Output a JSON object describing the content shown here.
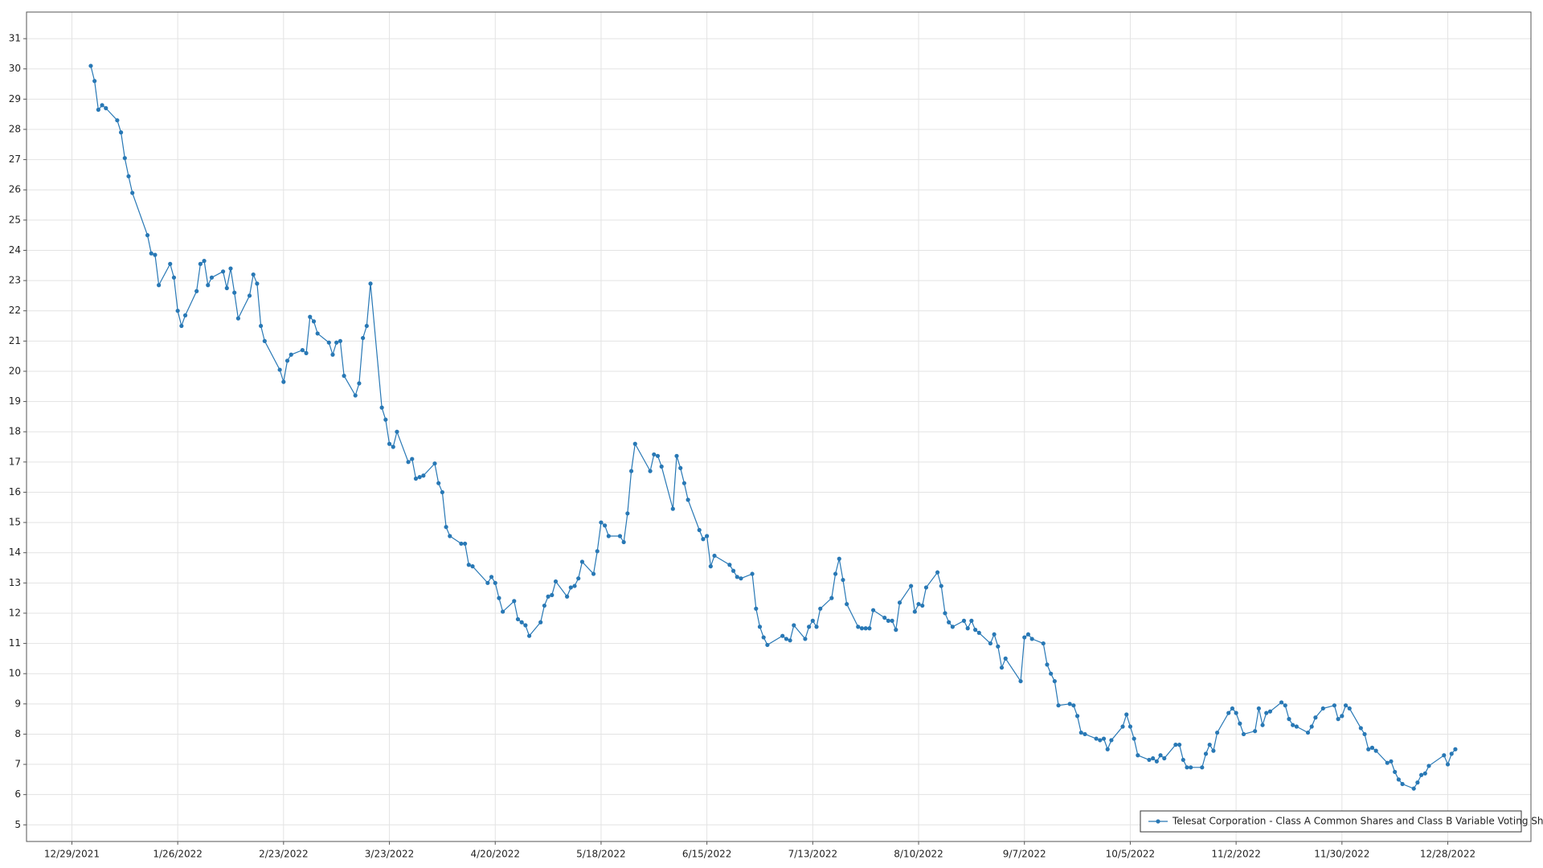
{
  "chart_data": {
    "type": "line",
    "xlim": [
      "2021-12-17",
      "2023-01-19"
    ],
    "ylim": [
      4.45,
      31.88
    ],
    "yticks": [
      5,
      6,
      7,
      8,
      9,
      10,
      11,
      12,
      13,
      14,
      15,
      16,
      17,
      18,
      19,
      20,
      21,
      22,
      23,
      24,
      25,
      26,
      27,
      28,
      29,
      30,
      31
    ],
    "xticks": [
      {
        "value": "2021-12-29",
        "label": "12/29/2021"
      },
      {
        "value": "2022-01-26",
        "label": "1/26/2022"
      },
      {
        "value": "2022-02-23",
        "label": "2/23/2022"
      },
      {
        "value": "2022-03-23",
        "label": "3/23/2022"
      },
      {
        "value": "2022-04-20",
        "label": "4/20/2022"
      },
      {
        "value": "2022-05-18",
        "label": "5/18/2022"
      },
      {
        "value": "2022-06-15",
        "label": "6/15/2022"
      },
      {
        "value": "2022-07-13",
        "label": "7/13/2022"
      },
      {
        "value": "2022-08-10",
        "label": "8/10/2022"
      },
      {
        "value": "2022-09-07",
        "label": "9/7/2022"
      },
      {
        "value": "2022-10-05",
        "label": "10/5/2022"
      },
      {
        "value": "2022-11-02",
        "label": "11/2/2022"
      },
      {
        "value": "2022-11-30",
        "label": "11/30/2022"
      },
      {
        "value": "2022-12-28",
        "label": "12/28/2022"
      }
    ],
    "grid": true,
    "legend": "lower right",
    "series": [
      {
        "name": "Telesat Corporation - Class A Common Shares and Class B Variable Voting Shares",
        "color": "#2878b5",
        "x": [
          "2022-01-03",
          "2022-01-04",
          "2022-01-05",
          "2022-01-06",
          "2022-01-07",
          "2022-01-10",
          "2022-01-11",
          "2022-01-12",
          "2022-01-13",
          "2022-01-14",
          "2022-01-18",
          "2022-01-19",
          "2022-01-20",
          "2022-01-21",
          "2022-01-24",
          "2022-01-25",
          "2022-01-26",
          "2022-01-27",
          "2022-01-28",
          "2022-01-31",
          "2022-02-01",
          "2022-02-02",
          "2022-02-03",
          "2022-02-04",
          "2022-02-07",
          "2022-02-08",
          "2022-02-09",
          "2022-02-10",
          "2022-02-11",
          "2022-02-14",
          "2022-02-15",
          "2022-02-16",
          "2022-02-17",
          "2022-02-18",
          "2022-02-22",
          "2022-02-23",
          "2022-02-24",
          "2022-02-25",
          "2022-02-28",
          "2022-03-01",
          "2022-03-02",
          "2022-03-03",
          "2022-03-04",
          "2022-03-07",
          "2022-03-08",
          "2022-03-09",
          "2022-03-10",
          "2022-03-11",
          "2022-03-14",
          "2022-03-15",
          "2022-03-16",
          "2022-03-17",
          "2022-03-18",
          "2022-03-21",
          "2022-03-22",
          "2022-03-23",
          "2022-03-24",
          "2022-03-25",
          "2022-03-28",
          "2022-03-29",
          "2022-03-30",
          "2022-03-31",
          "2022-04-01",
          "2022-04-04",
          "2022-04-05",
          "2022-04-06",
          "2022-04-07",
          "2022-04-08",
          "2022-04-11",
          "2022-04-12",
          "2022-04-13",
          "2022-04-14",
          "2022-04-18",
          "2022-04-19",
          "2022-04-20",
          "2022-04-21",
          "2022-04-22",
          "2022-04-25",
          "2022-04-26",
          "2022-04-27",
          "2022-04-28",
          "2022-04-29",
          "2022-05-02",
          "2022-05-03",
          "2022-05-04",
          "2022-05-05",
          "2022-05-06",
          "2022-05-09",
          "2022-05-10",
          "2022-05-11",
          "2022-05-12",
          "2022-05-13",
          "2022-05-16",
          "2022-05-17",
          "2022-05-18",
          "2022-05-19",
          "2022-05-20",
          "2022-05-23",
          "2022-05-24",
          "2022-05-25",
          "2022-05-26",
          "2022-05-27",
          "2022-05-31",
          "2022-06-01",
          "2022-06-02",
          "2022-06-03",
          "2022-06-06",
          "2022-06-07",
          "2022-06-08",
          "2022-06-09",
          "2022-06-10",
          "2022-06-13",
          "2022-06-14",
          "2022-06-15",
          "2022-06-16",
          "2022-06-17",
          "2022-06-21",
          "2022-06-22",
          "2022-06-23",
          "2022-06-24",
          "2022-06-27",
          "2022-06-28",
          "2022-06-29",
          "2022-06-30",
          "2022-07-01",
          "2022-07-05",
          "2022-07-06",
          "2022-07-07",
          "2022-07-08",
          "2022-07-11",
          "2022-07-12",
          "2022-07-13",
          "2022-07-14",
          "2022-07-15",
          "2022-07-18",
          "2022-07-19",
          "2022-07-20",
          "2022-07-21",
          "2022-07-22",
          "2022-07-25",
          "2022-07-26",
          "2022-07-27",
          "2022-07-28",
          "2022-07-29",
          "2022-08-01",
          "2022-08-02",
          "2022-08-03",
          "2022-08-04",
          "2022-08-05",
          "2022-08-08",
          "2022-08-09",
          "2022-08-10",
          "2022-08-11",
          "2022-08-12",
          "2022-08-15",
          "2022-08-16",
          "2022-08-17",
          "2022-08-18",
          "2022-08-19",
          "2022-08-22",
          "2022-08-23",
          "2022-08-24",
          "2022-08-25",
          "2022-08-26",
          "2022-08-29",
          "2022-08-30",
          "2022-08-31",
          "2022-09-01",
          "2022-09-02",
          "2022-09-06",
          "2022-09-07",
          "2022-09-08",
          "2022-09-09",
          "2022-09-12",
          "2022-09-13",
          "2022-09-14",
          "2022-09-15",
          "2022-09-16",
          "2022-09-19",
          "2022-09-20",
          "2022-09-21",
          "2022-09-22",
          "2022-09-23",
          "2022-09-26",
          "2022-09-27",
          "2022-09-28",
          "2022-09-29",
          "2022-09-30",
          "2022-10-03",
          "2022-10-04",
          "2022-10-05",
          "2022-10-06",
          "2022-10-07",
          "2022-10-10",
          "2022-10-11",
          "2022-10-12",
          "2022-10-13",
          "2022-10-14",
          "2022-10-17",
          "2022-10-18",
          "2022-10-19",
          "2022-10-20",
          "2022-10-21",
          "2022-10-24",
          "2022-10-25",
          "2022-10-26",
          "2022-10-27",
          "2022-10-28",
          "2022-10-31",
          "2022-11-01",
          "2022-11-02",
          "2022-11-03",
          "2022-11-04",
          "2022-11-07",
          "2022-11-08",
          "2022-11-09",
          "2022-11-10",
          "2022-11-11",
          "2022-11-14",
          "2022-11-15",
          "2022-11-16",
          "2022-11-17",
          "2022-11-18",
          "2022-11-21",
          "2022-11-22",
          "2022-11-23",
          "2022-11-25",
          "2022-11-28",
          "2022-11-29",
          "2022-11-30",
          "2022-12-01",
          "2022-12-02",
          "2022-12-05",
          "2022-12-06",
          "2022-12-07",
          "2022-12-08",
          "2022-12-09",
          "2022-12-12",
          "2022-12-13",
          "2022-12-14",
          "2022-12-15",
          "2022-12-16",
          "2022-12-19",
          "2022-12-20",
          "2022-12-21",
          "2022-12-22",
          "2022-12-23",
          "2022-12-27",
          "2022-12-28",
          "2022-12-29",
          "2022-12-30"
        ],
        "values": [
          30.1,
          29.6,
          28.65,
          28.8,
          28.7,
          28.3,
          27.9,
          27.05,
          26.45,
          25.9,
          24.5,
          23.9,
          23.85,
          22.85,
          23.55,
          23.1,
          22.0,
          21.5,
          21.85,
          22.65,
          23.55,
          23.65,
          22.85,
          23.1,
          23.3,
          22.75,
          23.4,
          22.6,
          21.75,
          22.5,
          23.2,
          22.9,
          21.5,
          21.0,
          20.05,
          19.65,
          20.35,
          20.55,
          20.7,
          20.6,
          21.8,
          21.65,
          21.25,
          20.95,
          20.55,
          20.95,
          21.0,
          19.85,
          19.2,
          19.6,
          21.1,
          21.5,
          22.9,
          18.8,
          18.4,
          17.6,
          17.5,
          18.0,
          17.0,
          17.1,
          16.45,
          16.5,
          16.55,
          16.95,
          16.3,
          16.0,
          14.85,
          14.55,
          14.3,
          14.3,
          13.6,
          13.55,
          13.0,
          13.2,
          13.0,
          12.5,
          12.05,
          12.4,
          11.8,
          11.7,
          11.6,
          11.25,
          11.7,
          12.25,
          12.55,
          12.6,
          13.05,
          12.55,
          12.85,
          12.9,
          13.15,
          13.7,
          13.3,
          14.05,
          15.0,
          14.9,
          14.55,
          14.55,
          14.35,
          15.3,
          16.7,
          17.6,
          16.7,
          17.25,
          17.2,
          16.85,
          15.45,
          17.2,
          16.8,
          16.3,
          15.75,
          14.75,
          14.45,
          14.55,
          13.55,
          13.9,
          13.6,
          13.4,
          13.2,
          13.15,
          13.3,
          12.15,
          11.55,
          11.2,
          10.95,
          11.25,
          11.15,
          11.1,
          11.6,
          11.15,
          11.55,
          11.75,
          11.55,
          12.15,
          12.5,
          13.3,
          13.8,
          13.1,
          12.3,
          11.55,
          11.5,
          11.5,
          11.5,
          12.1,
          11.85,
          11.75,
          11.75,
          11.45,
          12.35,
          12.9,
          12.05,
          12.3,
          12.25,
          12.85,
          13.35,
          12.9,
          12.0,
          11.7,
          11.55,
          11.75,
          11.5,
          11.75,
          11.45,
          11.35,
          11.0,
          11.3,
          10.9,
          10.2,
          10.5,
          9.75,
          11.2,
          11.3,
          11.15,
          11.0,
          10.3,
          10.0,
          9.75,
          8.95,
          9.0,
          8.95,
          8.6,
          8.05,
          8.0,
          7.85,
          7.8,
          7.85,
          7.5,
          7.8,
          8.25,
          8.65,
          8.25,
          7.85,
          7.3,
          7.15,
          7.2,
          7.1,
          7.3,
          7.2,
          7.65,
          7.65,
          7.15,
          6.9,
          6.9,
          6.9,
          7.35,
          7.65,
          7.45,
          8.05,
          8.7,
          8.85,
          8.7,
          8.35,
          8.0,
          8.1,
          8.85,
          8.3,
          8.7,
          8.75,
          9.05,
          8.95,
          8.5,
          8.3,
          8.25,
          8.05,
          8.25,
          8.55,
          8.85,
          8.95,
          8.5,
          8.6,
          8.95,
          8.85,
          8.2,
          8.0,
          7.5,
          7.55,
          7.45,
          7.05,
          7.1,
          6.75,
          6.5,
          6.35,
          6.2,
          6.4,
          6.65,
          6.7,
          6.95,
          7.3,
          7.0,
          7.35,
          7.5
        ]
      }
    ]
  }
}
